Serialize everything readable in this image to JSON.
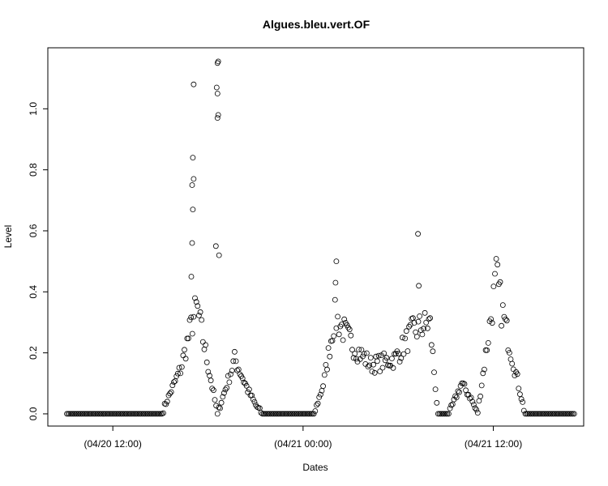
{
  "chart_data": {
    "type": "scatter",
    "title": "Algues.bleu.vert.OF",
    "xlabel": "Dates",
    "ylabel": "Level",
    "x_ticks": [
      "(04/20 12:00)",
      "(04/21 00:00)",
      "(04/21 12:00)"
    ],
    "x_tick_hours": [
      0,
      12,
      24
    ],
    "y_ticks": [
      "0.0",
      "0.2",
      "0.4",
      "0.6",
      "0.8",
      "1.0"
    ],
    "y_tick_values": [
      0,
      0.2,
      0.4,
      0.6,
      0.8,
      1.0
    ],
    "xlim_hours": [
      -4.1,
      29.7
    ],
    "ylim": [
      -0.04,
      1.2
    ],
    "grid": false,
    "marker": "open-circle",
    "profile_hours": [
      -2.9,
      3.1,
      3.3,
      4.3,
      5.0,
      5.3,
      6.6,
      7.7,
      8.5,
      9.0,
      9.4,
      10.3,
      12.7,
      13.3,
      14.0,
      15.2,
      16.3,
      17.8,
      18.9,
      20.0,
      20.5,
      21.2,
      22.0,
      22.6,
      23.0,
      23.8,
      24.2,
      24.5,
      26.0,
      29.1
    ],
    "profile_levels": [
      0,
      0,
      0.03,
      0.15,
      0.3,
      0.35,
      0.0,
      0.18,
      0.08,
      0.03,
      0,
      0,
      0,
      0.1,
      0.32,
      0.22,
      0.16,
      0.18,
      0.27,
      0.3,
      0,
      0,
      0.1,
      0.05,
      0,
      0.3,
      0.45,
      0.35,
      0,
      0
    ],
    "spikes": [
      {
        "x": 5.1,
        "y": 1.08
      },
      {
        "x": 5.05,
        "y": 0.84
      },
      {
        "x": 5.1,
        "y": 0.77
      },
      {
        "x": 5.0,
        "y": 0.75
      },
      {
        "x": 5.05,
        "y": 0.67
      },
      {
        "x": 5.0,
        "y": 0.56
      },
      {
        "x": 4.95,
        "y": 0.45
      },
      {
        "x": 6.6,
        "y": 1.15
      },
      {
        "x": 6.65,
        "y": 1.155
      },
      {
        "x": 6.55,
        "y": 1.07
      },
      {
        "x": 6.6,
        "y": 1.05
      },
      {
        "x": 6.65,
        "y": 0.98
      },
      {
        "x": 6.6,
        "y": 0.97
      },
      {
        "x": 6.5,
        "y": 0.55
      },
      {
        "x": 6.7,
        "y": 0.52
      },
      {
        "x": 14.1,
        "y": 0.5
      },
      {
        "x": 14.05,
        "y": 0.43
      },
      {
        "x": 19.25,
        "y": 0.59
      },
      {
        "x": 19.3,
        "y": 0.42
      }
    ]
  }
}
